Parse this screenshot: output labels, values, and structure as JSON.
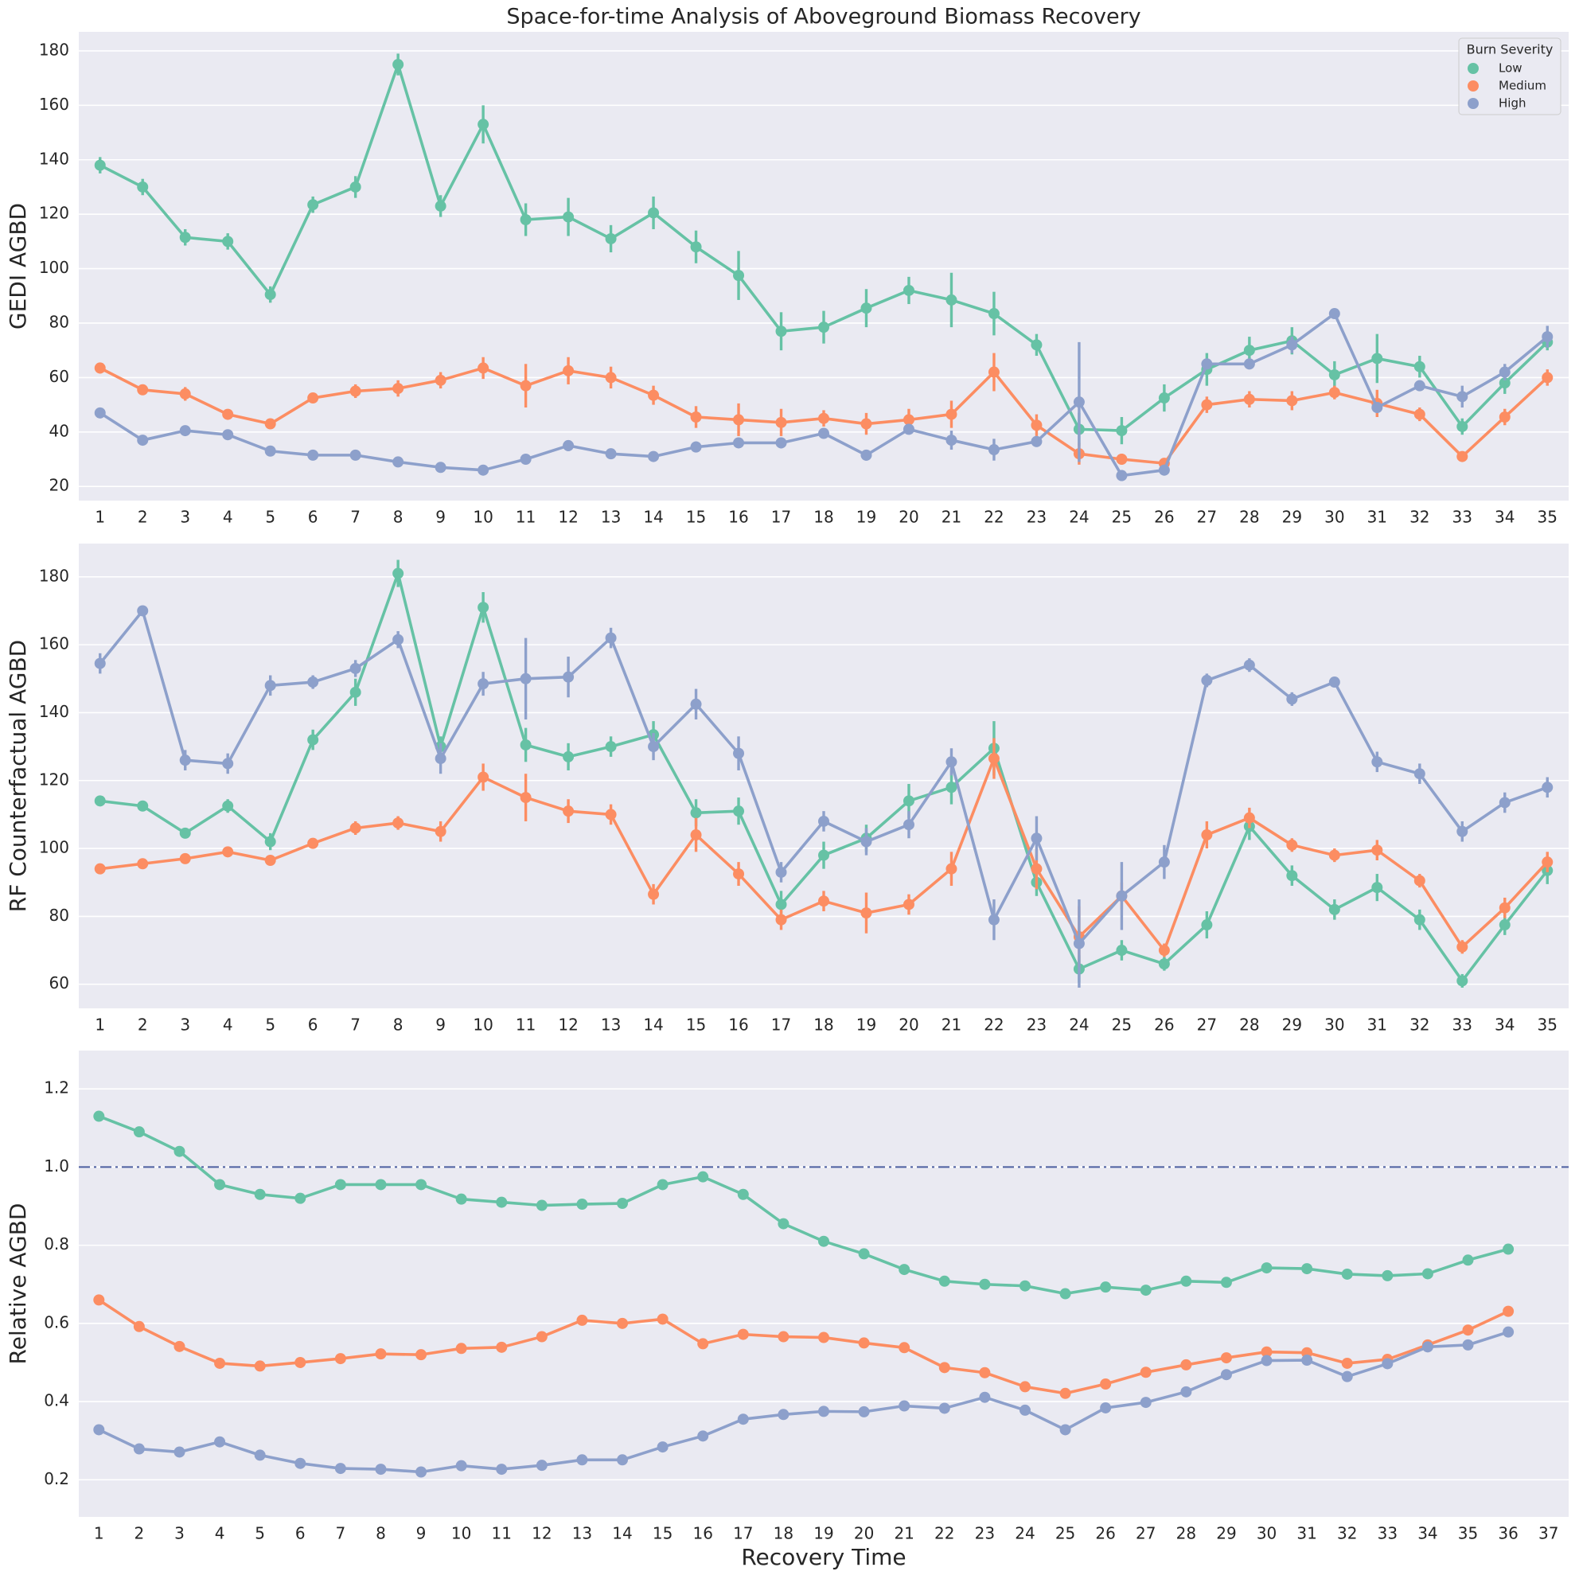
{
  "chart_data": [
    {
      "type": "line",
      "title": "Space-for-time Analysis of Aboveground Biomass Recovery",
      "ylabel": "GEDI AGBD",
      "categories": [
        1,
        2,
        3,
        4,
        5,
        6,
        7,
        8,
        9,
        10,
        11,
        12,
        13,
        14,
        15,
        16,
        17,
        18,
        19,
        20,
        21,
        22,
        23,
        24,
        25,
        26,
        27,
        28,
        29,
        30,
        31,
        32,
        33,
        34,
        35
      ],
      "ylim": [
        14.8,
        187
      ],
      "yticks": [
        20,
        40,
        60,
        80,
        100,
        120,
        140,
        160,
        180
      ],
      "grid": true,
      "legend": {
        "title": "Burn Severity",
        "position": "upper right"
      },
      "series": [
        {
          "name": "Low",
          "color": "#66c2a5",
          "values": [
            138,
            130,
            111.5,
            110,
            90.5,
            123.5,
            130,
            175,
            123,
            153,
            118,
            119,
            111,
            120.5,
            108,
            97.5,
            77,
            78.5,
            85.5,
            92,
            88.5,
            83.5,
            72,
            41,
            40.5,
            52.5,
            63,
            70,
            73.5,
            61,
            67,
            64,
            42,
            58,
            73
          ],
          "errors": [
            3,
            3,
            3,
            3,
            3,
            3,
            4,
            4,
            4,
            7,
            6,
            7,
            5,
            6,
            6,
            9,
            7,
            6,
            7,
            5,
            10,
            8,
            4,
            6,
            5,
            5,
            6,
            5,
            5,
            5,
            9,
            4,
            3,
            4,
            3
          ]
        },
        {
          "name": "Medium",
          "color": "#fc8d62",
          "values": [
            63.5,
            55.5,
            54,
            46.5,
            43,
            52.5,
            55,
            56,
            59,
            63.5,
            57,
            62.5,
            60,
            53.5,
            45.5,
            44.5,
            43.5,
            45,
            43,
            44.5,
            46.5,
            62,
            42.5,
            32,
            30,
            28.5,
            50,
            52,
            51.5,
            54.5,
            50.5,
            46.5,
            31,
            45.5,
            60
          ],
          "errors": [
            2,
            1.5,
            2.5,
            1.5,
            1.5,
            1.5,
            2.5,
            3,
            3,
            4,
            8,
            5,
            4,
            3.5,
            4,
            6,
            5,
            3,
            4,
            4,
            5,
            7,
            4,
            4,
            2,
            1.5,
            3,
            3,
            3.5,
            2.5,
            5,
            2.5,
            1.5,
            3,
            3
          ]
        },
        {
          "name": "High",
          "color": "#8da0cb",
          "values": [
            47,
            37,
            40.5,
            39,
            33,
            31.5,
            31.5,
            29,
            27,
            26,
            30,
            35,
            32,
            31,
            34.5,
            36,
            36,
            39.5,
            31.5,
            41,
            37,
            33.5,
            36.5,
            51,
            24,
            26,
            65,
            65,
            72,
            83.5,
            49,
            57,
            53,
            62,
            75
          ],
          "errors": [
            1,
            1,
            1,
            1,
            1,
            1,
            1,
            1,
            1,
            1,
            1,
            2,
            1,
            1,
            2,
            1,
            2,
            1.5,
            2,
            1.5,
            3.5,
            4,
            2,
            22,
            2,
            2,
            2,
            2,
            3,
            1.5,
            2,
            2,
            4,
            3,
            4
          ]
        }
      ]
    },
    {
      "type": "line",
      "ylabel": "RF Counterfactual AGBD",
      "categories": [
        1,
        2,
        3,
        4,
        5,
        6,
        7,
        8,
        9,
        10,
        11,
        12,
        13,
        14,
        15,
        16,
        17,
        18,
        19,
        20,
        21,
        22,
        23,
        24,
        25,
        26,
        27,
        28,
        29,
        30,
        31,
        32,
        33,
        34,
        35
      ],
      "ylim": [
        52.9,
        189.8
      ],
      "yticks": [
        60,
        80,
        100,
        120,
        140,
        160,
        180
      ],
      "grid": true,
      "series": [
        {
          "name": "Low",
          "color": "#66c2a5",
          "values": [
            114,
            112.5,
            104.5,
            112.5,
            102,
            132,
            146,
            181,
            130,
            171,
            130.5,
            127,
            130,
            133.5,
            110.5,
            111,
            83.5,
            98,
            103,
            114,
            118,
            129.5,
            90,
            64.5,
            70,
            66,
            77.5,
            106.5,
            92,
            82,
            88.5,
            79,
            61,
            77.5,
            93.5
          ],
          "errors": [
            1.5,
            1,
            1,
            2,
            2.5,
            3,
            4,
            4,
            3,
            4.5,
            5,
            4,
            3,
            4,
            4,
            4,
            4,
            4,
            4,
            5,
            5,
            8,
            4,
            4,
            3,
            2,
            4,
            4,
            3,
            3,
            4,
            3,
            2,
            3,
            4
          ]
        },
        {
          "name": "Medium",
          "color": "#fc8d62",
          "values": [
            94,
            95.5,
            97,
            99,
            96.5,
            101.5,
            106,
            107.5,
            105,
            121,
            115,
            111,
            110,
            86.5,
            104,
            92.5,
            79,
            84.5,
            81,
            83.5,
            94,
            126.5,
            94,
            74,
            86,
            70,
            104,
            109,
            101,
            98,
            99.5,
            90.5,
            71,
            82.5,
            96
          ],
          "errors": [
            1,
            1,
            1.5,
            1,
            1,
            1,
            2,
            2,
            3,
            4,
            7,
            3.5,
            3,
            3,
            5,
            3.5,
            3,
            3,
            6,
            3,
            5,
            6,
            6,
            9,
            4,
            2,
            4,
            3,
            2,
            2,
            3,
            2,
            2,
            3,
            3
          ]
        },
        {
          "name": "High",
          "color": "#8da0cb",
          "values": [
            154.5,
            170,
            126,
            125,
            148,
            149,
            153,
            161.5,
            126.5,
            148.5,
            150,
            150.5,
            162,
            130,
            142.5,
            128,
            93,
            108,
            102,
            107,
            125.5,
            79,
            103,
            72,
            86,
            96,
            149.5,
            154,
            144,
            149,
            125.5,
            122,
            105,
            113.5,
            118
          ],
          "errors": [
            3,
            1.5,
            3,
            3,
            3,
            2,
            2.5,
            2.5,
            4.5,
            3.5,
            12,
            6,
            3,
            4,
            4.5,
            5,
            3,
            3,
            4,
            4,
            4,
            6,
            6.5,
            13,
            10,
            5,
            2,
            2,
            2,
            1.5,
            3,
            3,
            3,
            3,
            3
          ]
        }
      ]
    },
    {
      "type": "line",
      "ylabel": "Relative AGBD",
      "xlabel": "Recovery Time",
      "categories": [
        1,
        2,
        3,
        4,
        5,
        6,
        7,
        8,
        9,
        10,
        11,
        12,
        13,
        14,
        15,
        16,
        17,
        18,
        19,
        20,
        21,
        22,
        23,
        24,
        25,
        26,
        27,
        28,
        29,
        30,
        31,
        32,
        33,
        34,
        35,
        36,
        37
      ],
      "ylim": [
        0.105,
        1.298
      ],
      "yticks": [
        0.2,
        0.4,
        0.6,
        0.8,
        {
          "value": 1,
          "label": "1.0"
        },
        1.2
      ],
      "grid": true,
      "reference_line": 1,
      "series": [
        {
          "name": "Low",
          "color": "#66c2a5",
          "values": [
            1.13,
            1.09,
            1.04,
            0.955,
            0.93,
            0.92,
            0.955,
            0.955,
            0.955,
            0.918,
            0.91,
            0.902,
            0.905,
            0.907,
            0.955,
            0.975,
            0.93,
            0.855,
            0.81,
            0.778,
            0.738,
            0.708,
            0.7,
            0.696,
            0.676,
            0.693,
            0.685,
            0.708,
            0.705,
            0.742,
            0.74,
            0.726,
            0.722,
            0.727,
            0.762,
            0.79,
            null
          ]
        },
        {
          "name": "Medium",
          "color": "#fc8d62",
          "values": [
            0.66,
            0.592,
            0.541,
            0.498,
            0.491,
            0.5,
            0.51,
            0.522,
            0.52,
            0.536,
            0.539,
            0.566,
            0.608,
            0.6,
            0.611,
            0.548,
            0.572,
            0.566,
            0.564,
            0.55,
            0.538,
            0.487,
            0.474,
            0.438,
            0.421,
            0.445,
            0.475,
            0.494,
            0.512,
            0.527,
            0.525,
            0.498,
            0.508,
            0.545,
            0.583,
            0.631,
            null
          ]
        },
        {
          "name": "High",
          "color": "#8da0cb",
          "values": [
            0.328,
            0.279,
            0.271,
            0.297,
            0.263,
            0.242,
            0.229,
            0.227,
            0.22,
            0.236,
            0.227,
            0.237,
            0.251,
            0.251,
            0.284,
            0.312,
            0.355,
            0.367,
            0.375,
            0.374,
            0.389,
            0.383,
            0.411,
            0.378,
            0.328,
            0.384,
            0.398,
            0.425,
            0.469,
            0.505,
            0.506,
            0.464,
            0.497,
            0.54,
            0.545,
            0.578,
            null
          ]
        }
      ]
    }
  ]
}
